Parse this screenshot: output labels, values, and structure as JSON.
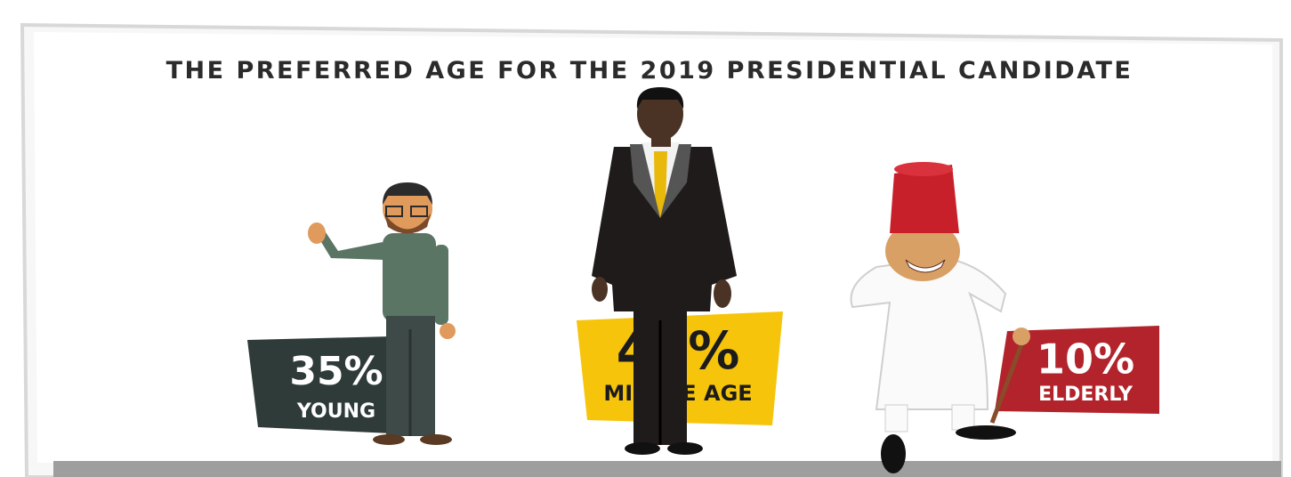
{
  "chart_data": {
    "type": "pictogram",
    "title": "THE PREFERRED AGE FOR THE 2019 PRESIDENTIAL CANDIDATE",
    "categories": [
      "YOUNG",
      "MIDDLE AGE",
      "ELDERLY"
    ],
    "values": [
      35,
      48,
      10
    ],
    "value_labels": [
      "35%",
      "48%",
      "10%"
    ],
    "colors": [
      "#2f3b38",
      "#f6c40a",
      "#b3232b"
    ]
  }
}
